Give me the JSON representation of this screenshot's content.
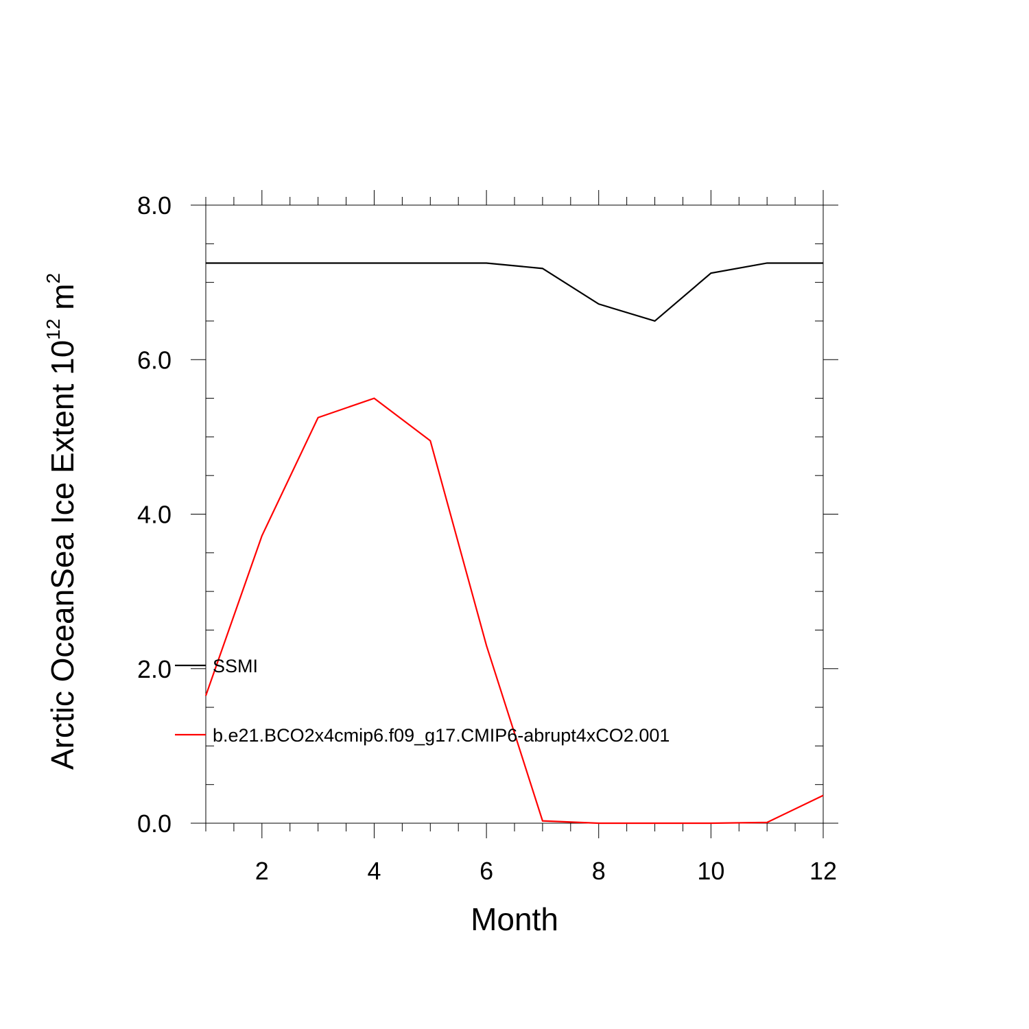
{
  "chart_data": {
    "type": "line",
    "xlabel": "Month",
    "ylabel": {
      "text": "Arctic OceanSea Ice Extent 10",
      "sup1": "12",
      "unit": " m",
      "sup2": "2"
    },
    "xlim": [
      1,
      12
    ],
    "ylim": [
      0,
      8
    ],
    "x_ticks": [
      2,
      4,
      6,
      8,
      10,
      12
    ],
    "x_tick_labels": [
      "2",
      "4",
      "6",
      "8",
      "10",
      "12"
    ],
    "y_ticks": [
      0,
      2,
      4,
      6,
      8
    ],
    "y_tick_labels": [
      "0.0",
      "2.0",
      "4.0",
      "6.0",
      "8.0"
    ],
    "x": [
      1,
      2,
      3,
      4,
      5,
      6,
      7,
      8,
      9,
      10,
      11,
      12
    ],
    "series": [
      {
        "name": "SSMI",
        "color": "#000000",
        "values": [
          7.25,
          7.25,
          7.25,
          7.25,
          7.25,
          7.25,
          7.18,
          6.72,
          6.5,
          7.12,
          7.25,
          7.25
        ]
      },
      {
        "name": "b.e21.BCO2x4cmip6.f09_g17.CMIP6-abrupt4xCO2.001",
        "color": "#ff0000",
        "values": [
          1.65,
          3.72,
          5.25,
          5.5,
          4.95,
          2.3,
          0.03,
          0.0,
          0.0,
          0.0,
          0.01,
          0.36
        ]
      }
    ],
    "legend": "bottom-left",
    "grid": false
  }
}
